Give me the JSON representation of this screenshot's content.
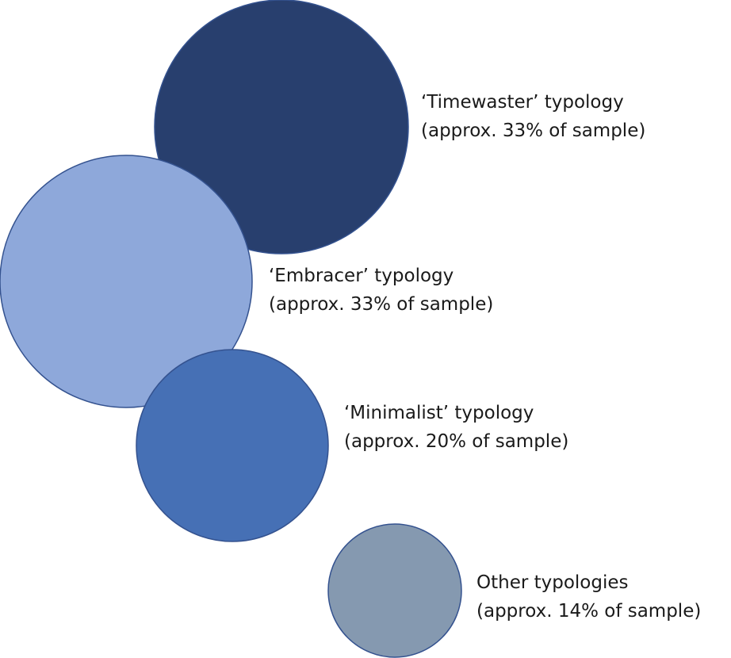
{
  "typologies": [
    {
      "name": "‘Timewaster’ typology",
      "share": "(approx. 33% of sample)",
      "color": "#283f6e"
    },
    {
      "name": "‘Embracer’ typology",
      "share": "(approx. 33% of sample)",
      "color": "#8ea8da"
    },
    {
      "name": "‘Minimalist’ typology",
      "share": "(approx. 20% of sample)",
      "color": "#4670b5"
    },
    {
      "name": "Other typologies",
      "share": "(approx. 14% of sample)",
      "color": "#8599b0"
    }
  ],
  "stroke_color": "#34528f"
}
